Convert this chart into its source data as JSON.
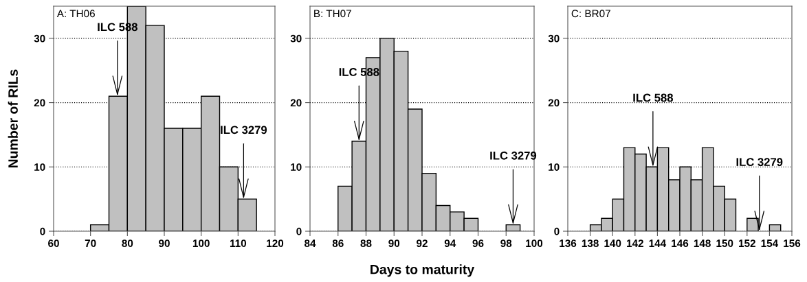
{
  "chart_data": [
    {
      "type": "histogram",
      "title": "A: TH06",
      "ylabel": "Number of RILs",
      "bins": [
        70,
        75,
        80,
        85,
        90,
        95,
        100,
        105,
        110,
        115
      ],
      "values": [
        1,
        21,
        35,
        32,
        16,
        16,
        21,
        10,
        5
      ],
      "color": "#c0c0c0",
      "xlim": [
        60,
        120
      ],
      "xticks": [
        60,
        70,
        80,
        90,
        100,
        110,
        120
      ],
      "ylim": [
        0,
        35
      ],
      "yticks": [
        0,
        10,
        20,
        30
      ],
      "grid": "y",
      "annotations": [
        {
          "text": "ILC 588",
          "x": 77.3,
          "y": 21
        },
        {
          "text": "ILC 3279",
          "x": 111.5,
          "y": 5
        }
      ]
    },
    {
      "type": "histogram",
      "title": "B: TH07",
      "xlabel": "Days to maturity",
      "bins": [
        86,
        87,
        88,
        89,
        90,
        91,
        92,
        93,
        94,
        95,
        96,
        97,
        98,
        99
      ],
      "values": [
        7,
        14,
        27,
        30,
        28,
        19,
        9,
        4,
        3,
        2,
        0,
        0,
        1
      ],
      "color": "#c0c0c0",
      "xlim": [
        84,
        100
      ],
      "xticks": [
        84,
        86,
        88,
        90,
        92,
        94,
        96,
        98,
        100
      ],
      "ylim": [
        0,
        35
      ],
      "yticks": [
        0,
        10,
        20,
        30
      ],
      "grid": "y",
      "annotations": [
        {
          "text": "ILC 588",
          "x": 87.5,
          "y": 14
        },
        {
          "text": "ILC 3279",
          "x": 98.5,
          "y": 1
        }
      ]
    },
    {
      "type": "histogram",
      "title": "C: BR07",
      "bins": [
        138,
        139,
        140,
        141,
        142,
        143,
        144,
        145,
        146,
        147,
        148,
        149,
        150,
        151,
        152,
        153,
        154,
        155
      ],
      "values": [
        1,
        2,
        5,
        13,
        12,
        10,
        13,
        8,
        10,
        8,
        13,
        7,
        5,
        0,
        2,
        0,
        1
      ],
      "color": "#c0c0c0",
      "xlim": [
        136,
        156
      ],
      "xticks": [
        136,
        138,
        140,
        142,
        144,
        146,
        148,
        150,
        152,
        154,
        156
      ],
      "ylim": [
        0,
        35
      ],
      "yticks": [
        0,
        10,
        20,
        30
      ],
      "grid": "y",
      "annotations": [
        {
          "text": "ILC 588",
          "x": 143.6,
          "y": 10
        },
        {
          "text": "ILC 3279",
          "x": 153.1,
          "y": 0
        }
      ]
    }
  ]
}
